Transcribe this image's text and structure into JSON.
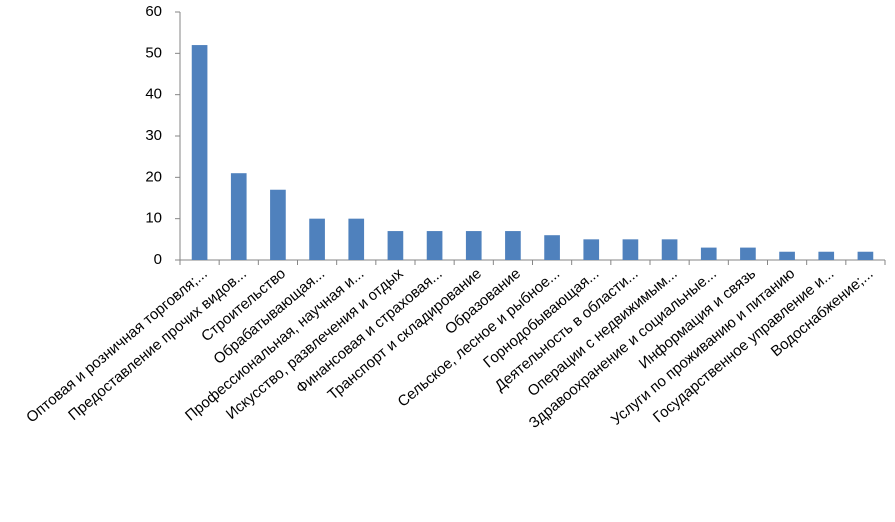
{
  "chart_data": {
    "type": "bar",
    "categories": [
      "Оптовая и розничная торговля;...",
      "Предоставление прочих видов...",
      "Строительство",
      "Обрабатывающая...",
      "Профессиональная, научная и...",
      "Искусство, развлечения и отдых",
      "Финансовая и страховая...",
      "Транспорт и складирование",
      "Образование",
      "Сельское, лесное и рыбное...",
      "Горнодобывающая...",
      "Деятельность в области...",
      "Операции с недвижимым...",
      "Здравоохранение и социальные...",
      "Информация и связь",
      "Услуги по проживанию и питанию",
      "Государственное управление и...",
      "Водоснабжение;..."
    ],
    "values": [
      52,
      21,
      17,
      10,
      10,
      7,
      7,
      7,
      7,
      6,
      5,
      5,
      5,
      3,
      3,
      2,
      2,
      2
    ],
    "color": "#4f81bd",
    "ylim": [
      0,
      60
    ],
    "yticks": [
      0,
      10,
      20,
      30,
      40,
      50,
      60
    ],
    "grid": false
  }
}
